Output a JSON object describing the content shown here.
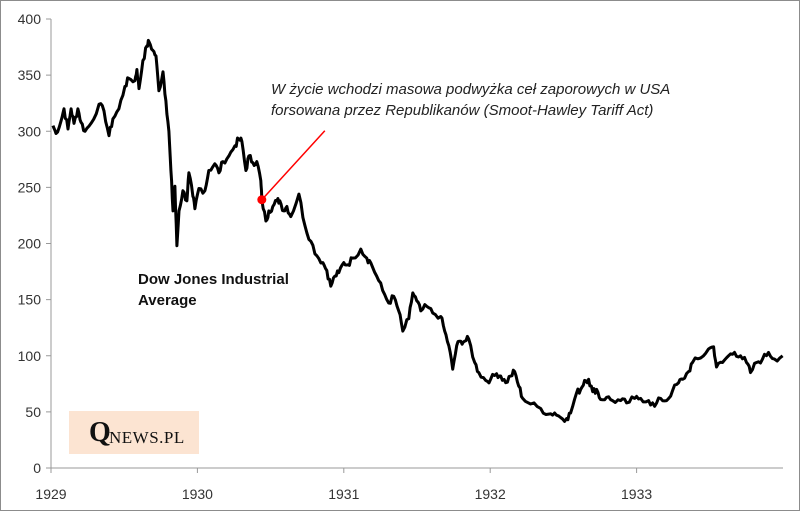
{
  "chart_data": {
    "type": "line",
    "title": "",
    "xlabel": "",
    "ylabel": "",
    "xlim": [
      1929,
      1934
    ],
    "ylim": [
      0,
      400
    ],
    "x_ticks": [
      1929,
      1930,
      1931,
      1932,
      1933
    ],
    "x_tick_labels": [
      "1929",
      "1930",
      "1931",
      "1932",
      "1933"
    ],
    "y_ticks": [
      0,
      50,
      100,
      150,
      200,
      250,
      300,
      350,
      400
    ],
    "y_tick_labels": [
      "0",
      "50",
      "100",
      "150",
      "200",
      "250",
      "300",
      "350",
      "400"
    ],
    "grid": false,
    "series": [
      {
        "name": "Dow Jones Industrial Average",
        "color": "#000000",
        "points": [
          [
            1929.014,
            305
          ],
          [
            1929.034,
            298
          ],
          [
            1929.068,
            309
          ],
          [
            1929.089,
            320
          ],
          [
            1929.116,
            302
          ],
          [
            1929.137,
            320
          ],
          [
            1929.157,
            307
          ],
          [
            1929.184,
            320
          ],
          [
            1929.205,
            308
          ],
          [
            1929.232,
            300
          ],
          [
            1929.273,
            307
          ],
          [
            1929.328,
            324
          ],
          [
            1929.362,
            318
          ],
          [
            1929.396,
            296
          ],
          [
            1929.423,
            311
          ],
          [
            1929.464,
            320
          ],
          [
            1929.505,
            340
          ],
          [
            1929.532,
            347
          ],
          [
            1929.573,
            345
          ],
          [
            1929.587,
            355
          ],
          [
            1929.601,
            338
          ],
          [
            1929.628,
            363
          ],
          [
            1929.655,
            376
          ],
          [
            1929.669,
            380
          ],
          [
            1929.696,
            372
          ],
          [
            1929.717,
            367
          ],
          [
            1929.737,
            336
          ],
          [
            1929.765,
            353
          ],
          [
            1929.785,
            327
          ],
          [
            1929.805,
            300
          ],
          [
            1929.819,
            265
          ],
          [
            1929.833,
            229
          ],
          [
            1929.846,
            251
          ],
          [
            1929.86,
            198
          ],
          [
            1929.874,
            229
          ],
          [
            1929.901,
            247
          ],
          [
            1929.928,
            238
          ],
          [
            1929.942,
            263
          ],
          [
            1929.969,
            242
          ],
          [
            1929.983,
            231
          ],
          [
            1930.01,
            249
          ],
          [
            1930.051,
            247
          ],
          [
            1930.078,
            265
          ],
          [
            1930.119,
            271
          ],
          [
            1930.147,
            263
          ],
          [
            1930.174,
            273
          ],
          [
            1930.215,
            278
          ],
          [
            1930.256,
            287
          ],
          [
            1930.283,
            293
          ],
          [
            1930.304,
            291
          ],
          [
            1930.331,
            265
          ],
          [
            1930.352,
            278
          ],
          [
            1930.379,
            272
          ],
          [
            1930.406,
            273
          ],
          [
            1930.433,
            256
          ],
          [
            1930.44,
            239
          ],
          [
            1930.468,
            220
          ],
          [
            1930.488,
            229
          ],
          [
            1930.515,
            233
          ],
          [
            1930.543,
            238
          ],
          [
            1930.563,
            238
          ],
          [
            1930.59,
            229
          ],
          [
            1930.611,
            233
          ],
          [
            1930.638,
            224
          ],
          [
            1930.693,
            244
          ],
          [
            1930.734,
            216
          ],
          [
            1930.775,
            202
          ],
          [
            1930.816,
            189
          ],
          [
            1930.857,
            183
          ],
          [
            1930.884,
            176
          ],
          [
            1930.911,
            162
          ],
          [
            1930.939,
            171
          ],
          [
            1930.966,
            174
          ],
          [
            1931.0,
            183
          ],
          [
            1931.027,
            181
          ],
          [
            1931.061,
            187
          ],
          [
            1931.116,
            195
          ],
          [
            1931.157,
            187
          ],
          [
            1931.184,
            183
          ],
          [
            1931.225,
            171
          ],
          [
            1931.266,
            158
          ],
          [
            1931.307,
            147
          ],
          [
            1931.341,
            153
          ],
          [
            1931.375,
            140
          ],
          [
            1931.403,
            122
          ],
          [
            1931.444,
            133
          ],
          [
            1931.471,
            156
          ],
          [
            1931.498,
            149
          ],
          [
            1931.526,
            140
          ],
          [
            1931.567,
            144
          ],
          [
            1931.608,
            138
          ],
          [
            1931.662,
            135
          ],
          [
            1931.689,
            122
          ],
          [
            1931.717,
            109
          ],
          [
            1931.744,
            88
          ],
          [
            1931.771,
            109
          ],
          [
            1931.799,
            113
          ],
          [
            1931.826,
            113
          ],
          [
            1931.853,
            115
          ],
          [
            1931.894,
            94
          ],
          [
            1931.922,
            85
          ],
          [
            1931.969,
            78
          ],
          [
            1932.003,
            79
          ],
          [
            1932.044,
            84
          ],
          [
            1932.072,
            82
          ],
          [
            1932.106,
            76
          ],
          [
            1932.14,
            82
          ],
          [
            1932.167,
            86
          ],
          [
            1932.195,
            73
          ],
          [
            1932.222,
            62
          ],
          [
            1932.276,
            57
          ],
          [
            1932.345,
            53
          ],
          [
            1932.399,
            48
          ],
          [
            1932.44,
            49
          ],
          [
            1932.481,
            45
          ],
          [
            1932.522,
            44
          ],
          [
            1932.549,
            49
          ],
          [
            1932.59,
            67
          ],
          [
            1932.618,
            70
          ],
          [
            1932.645,
            78
          ],
          [
            1932.672,
            79
          ],
          [
            1932.7,
            68
          ],
          [
            1932.727,
            70
          ],
          [
            1932.754,
            61
          ],
          [
            1932.795,
            63
          ],
          [
            1932.836,
            60
          ],
          [
            1932.891,
            60
          ],
          [
            1932.932,
            58
          ],
          [
            1932.986,
            62
          ],
          [
            1933.027,
            62
          ],
          [
            1933.082,
            60
          ],
          [
            1933.123,
            55
          ],
          [
            1933.164,
            62
          ],
          [
            1933.205,
            60
          ],
          [
            1933.246,
            69
          ],
          [
            1933.287,
            76
          ],
          [
            1933.314,
            79
          ],
          [
            1933.355,
            86
          ],
          [
            1933.382,
            94
          ],
          [
            1933.437,
            98
          ],
          [
            1933.491,
            106
          ],
          [
            1933.526,
            108
          ],
          [
            1933.546,
            90
          ],
          [
            1933.587,
            94
          ],
          [
            1933.628,
            100
          ],
          [
            1933.669,
            103
          ],
          [
            1933.71,
            100
          ],
          [
            1933.751,
            94
          ],
          [
            1933.778,
            85
          ],
          [
            1933.819,
            94
          ],
          [
            1933.86,
            97
          ],
          [
            1933.901,
            103
          ],
          [
            1933.942,
            97
          ],
          [
            1933.997,
            100
          ]
        ]
      }
    ],
    "annotations": [
      {
        "text_line1": "W życie wchodzi masowa podwyżka ceł zaporowych w USA",
        "text_line2": "forsowana przez Republikanów (Smoot-Hawley Tariff Act)",
        "point": [
          1930.44,
          239
        ],
        "color": "#ff0000"
      }
    ],
    "series_label_line1": "Dow Jones Industrial",
    "series_label_line2": "Average",
    "legend": "none"
  },
  "logo": {
    "q": "Q",
    "rest": "NEWS.PL"
  }
}
